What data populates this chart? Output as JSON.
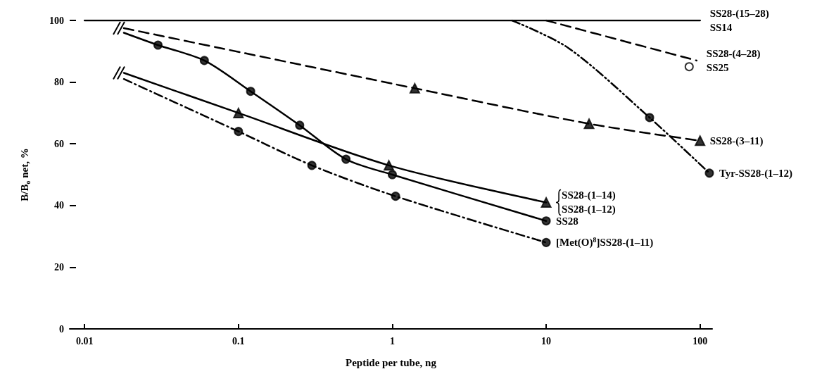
{
  "chart_data": {
    "type": "line",
    "xlabel": "Peptide per tube, ng",
    "ylabel": "B/B$_{o}$ net, %",
    "log": "x",
    "xlim": [
      0.008,
      120
    ],
    "xticks": [
      0.01,
      0.1,
      1,
      10,
      100
    ],
    "ylim": [
      0,
      100
    ],
    "yticks": [
      0,
      20,
      40,
      60,
      80,
      100
    ],
    "grid": false,
    "series": [
      {
        "type": "line",
        "line_style": "solid",
        "marker": "none",
        "color": "#000000",
        "x": [
          0.01,
          100
        ],
        "values": [
          100,
          100
        ]
      },
      {
        "type": "line",
        "line_style": "dashed",
        "marker": "none",
        "color": "#000000",
        "x": [
          10,
          95
        ],
        "values": [
          100,
          87
        ]
      },
      {
        "type": "line",
        "line_style": "dashdotdot",
        "marker": "none",
        "color": "#000000",
        "x": [
          6,
          14,
          47,
          115
        ],
        "values": [
          100,
          91,
          68.5,
          50.5
        ]
      },
      {
        "type": "line",
        "line_style": "dashed",
        "marker": "none",
        "color": "#000000",
        "x": [
          0.018,
          1.4,
          19,
          100
        ],
        "values": [
          97.5,
          78,
          66.5,
          61
        ]
      },
      {
        "type": "line",
        "line_style": "solid",
        "marker": "none",
        "color": "#000000",
        "x": [
          0.018,
          0.03,
          0.06,
          0.12,
          0.25,
          0.5,
          1,
          10
        ],
        "values": [
          96,
          92,
          87,
          77,
          66,
          55,
          50,
          35
        ]
      },
      {
        "type": "line",
        "line_style": "solid",
        "marker": "none",
        "color": "#000000",
        "x": [
          0.018,
          0.1,
          0.95,
          10
        ],
        "values": [
          83,
          70,
          53,
          41
        ]
      },
      {
        "type": "line",
        "line_style": "dashdot",
        "marker": "none",
        "color": "#000000",
        "x": [
          0.018,
          0.1,
          0.3,
          1.05,
          10
        ],
        "values": [
          81,
          64,
          53,
          43,
          28
        ]
      },
      {
        "type": "scatter",
        "marker": "triangle",
        "color": "#000000",
        "x": [
          1.4,
          19,
          100
        ],
        "values": [
          78,
          66.5,
          61
        ]
      },
      {
        "type": "scatter",
        "marker": "circle",
        "color": "#000000",
        "x": [
          0.03,
          0.06,
          0.12,
          0.25,
          0.5,
          1,
          10
        ],
        "values": [
          92,
          87,
          77,
          66,
          55,
          50,
          35
        ]
      },
      {
        "type": "scatter",
        "marker": "triangle",
        "color": "#000000",
        "x": [
          0.1,
          0.95,
          10
        ],
        "values": [
          70,
          53,
          41
        ]
      },
      {
        "type": "scatter",
        "marker": "circle",
        "color": "#000000",
        "x": [
          0.1,
          0.3,
          1.05,
          10
        ],
        "values": [
          64,
          53,
          43,
          28
        ]
      },
      {
        "type": "scatter",
        "marker": "circle",
        "color": "#000000",
        "x": [
          47,
          115
        ],
        "values": [
          68.5,
          50.5
        ]
      },
      {
        "type": "scatter",
        "marker": "circle",
        "color": "#ffffff",
        "x": [
          85
        ],
        "values": [
          85
        ]
      }
    ],
    "annotations": [
      {
        "text": "SS28-(15–28)",
        "x": 100,
        "y": 100
      },
      {
        "text": "SS14",
        "x": 100,
        "y": 100
      },
      {
        "text": "SS28-(4–28)",
        "x": 95,
        "y": 87
      },
      {
        "text": "SS25",
        "x": 95,
        "y": 87
      },
      {
        "text": "SS28-(3–11)",
        "x": 100,
        "y": 61
      },
      {
        "text": "Tyr-SS28-(1–12)",
        "x": 115,
        "y": 50.5
      },
      {
        "text": "SS28-(1–14)",
        "x": 10,
        "y": 41
      },
      {
        "text": "SS28-(1–12)",
        "x": 10,
        "y": 41
      },
      {
        "text": "SS28",
        "x": 10,
        "y": 35
      },
      {
        "text": "[Met(O)$^{8}$]SS28-(1–11)",
        "x": 10,
        "y": 28
      }
    ]
  }
}
